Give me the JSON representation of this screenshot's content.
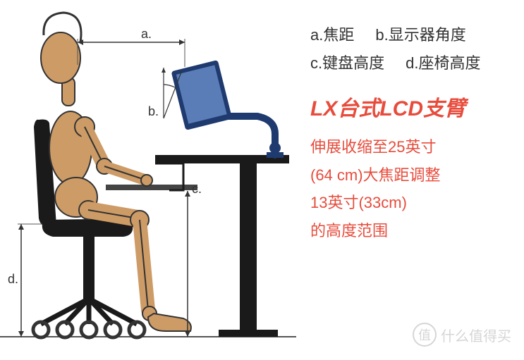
{
  "legend": {
    "a": "a.焦距",
    "b": "b.显示器角度",
    "c": "c.键盘高度",
    "d": "d.座椅高度"
  },
  "title": {
    "text": "LX台式LCD支臂",
    "color": "#e74c3c"
  },
  "description": {
    "lines": [
      "伸展收缩至25英寸",
      "(64 cm)大焦距调整",
      "13英寸(33cm)",
      "的高度范围"
    ],
    "color": "#e74c3c"
  },
  "dims": {
    "a": "a.",
    "b": "b.",
    "c": "c.",
    "d": "d."
  },
  "watermark": {
    "icon": "值",
    "text": "什么值得买"
  },
  "colors": {
    "body": "#cd9b66",
    "bodyLine": "#333333",
    "chair": "#1a1a1a",
    "desk": "#1a1a1a",
    "monitor": "#1f3a6e",
    "monitorScreen": "#5a7db8",
    "arm": "#1f3a6e",
    "dimLine": "#555555",
    "dimArrow": "#333333",
    "keyboard": "#444444",
    "wheel": "#333333"
  },
  "layout": {
    "floorY": 478,
    "deskTopY": 220,
    "deskLeftX": 220,
    "deskRightX": 410,
    "deskLegX": 340,
    "seatY": 318,
    "keyboardY": 265,
    "monitorX": 270,
    "monitorY": 130,
    "headX": 80,
    "headY": 60
  }
}
